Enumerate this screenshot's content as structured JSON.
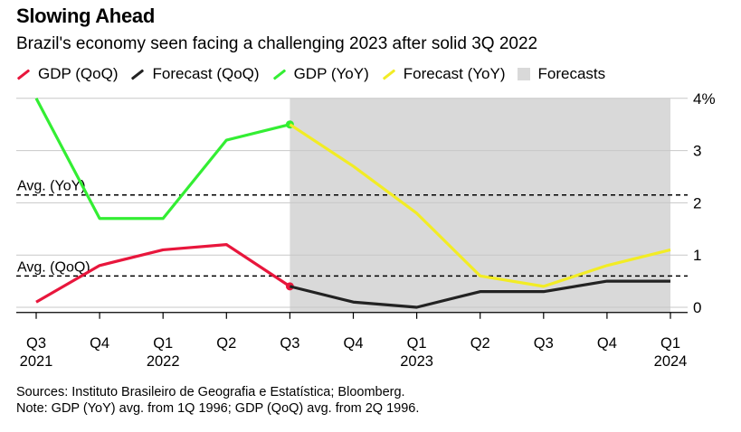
{
  "title": "Slowing Ahead",
  "subtitle": "Brazil's economy seen facing a challenging 2023 after solid 3Q 2022",
  "legend": [
    {
      "label": "GDP (QoQ)",
      "color": "#e8163c",
      "kind": "line"
    },
    {
      "label": "Forecast (QoQ)",
      "color": "#222222",
      "kind": "line"
    },
    {
      "label": "GDP (YoY)",
      "color": "#33ee33",
      "kind": "line"
    },
    {
      "label": "Forecast (YoY)",
      "color": "#f2ec25",
      "kind": "line"
    },
    {
      "label": "Forecasts",
      "color": "#d9d9d9",
      "kind": "box"
    }
  ],
  "chart_data": {
    "type": "line",
    "title": "Slowing Ahead",
    "xlabel": "",
    "ylabel": "%",
    "ylim": [
      -0.1,
      4
    ],
    "yticks": [
      0,
      1,
      2,
      3,
      4
    ],
    "ytick_labels": [
      "0",
      "1",
      "2",
      "3",
      "4%"
    ],
    "categories": [
      "Q3 2021",
      "Q4 2021",
      "Q1 2022",
      "Q2 2022",
      "Q3 2022",
      "Q4 2022",
      "Q1 2023",
      "Q2 2023",
      "Q3 2023",
      "Q4 2023",
      "Q1 2024"
    ],
    "x_tick_quarters": [
      "Q3",
      "Q4",
      "Q1",
      "Q2",
      "Q3",
      "Q4",
      "Q1",
      "Q2",
      "Q3",
      "Q4",
      "Q1"
    ],
    "x_tick_years": [
      "2021",
      "",
      "2022",
      "",
      "",
      "",
      "2023",
      "",
      "",
      "",
      "2024"
    ],
    "forecast_region": {
      "from": "Q3 2022",
      "to": "Q1 2024",
      "color": "#d9d9d9"
    },
    "series": [
      {
        "name": "GDP (QoQ)",
        "color": "#e8163c",
        "values": [
          0.1,
          0.8,
          1.1,
          1.2,
          0.4,
          null,
          null,
          null,
          null,
          null,
          null
        ],
        "end_marker": true
      },
      {
        "name": "Forecast (QoQ)",
        "color": "#222222",
        "values": [
          null,
          null,
          null,
          null,
          0.4,
          0.1,
          0.0,
          0.3,
          0.3,
          0.5,
          0.5
        ]
      },
      {
        "name": "GDP (YoY)",
        "color": "#33ee33",
        "values": [
          4.0,
          1.7,
          1.7,
          3.2,
          3.5,
          null,
          null,
          null,
          null,
          null,
          null
        ],
        "end_marker": true
      },
      {
        "name": "Forecast (YoY)",
        "color": "#f2ec25",
        "values": [
          null,
          null,
          null,
          null,
          3.5,
          2.7,
          1.8,
          0.6,
          0.4,
          0.8,
          1.1
        ]
      }
    ],
    "reference_lines": [
      {
        "label": "Avg. (YoY)",
        "value": 2.15
      },
      {
        "label": "Avg. (QoQ)",
        "value": 0.6
      }
    ]
  },
  "footnotes": {
    "sources": "Sources: Instituto Brasileiro de Geografia e Estatística; Bloomberg.",
    "note": "Note: GDP (YoY) avg. from 1Q 1996; GDP (QoQ) avg. from 2Q 1996."
  }
}
